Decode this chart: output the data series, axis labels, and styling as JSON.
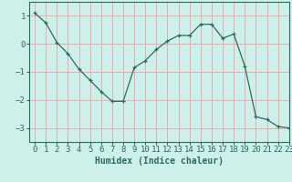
{
  "x": [
    0,
    1,
    2,
    3,
    4,
    5,
    6,
    7,
    8,
    9,
    10,
    11,
    12,
    13,
    14,
    15,
    16,
    17,
    18,
    19,
    20,
    21,
    22,
    23
  ],
  "y": [
    1.1,
    0.75,
    0.05,
    -0.35,
    -0.9,
    -1.3,
    -1.7,
    -2.05,
    -2.05,
    -0.85,
    -0.6,
    -0.2,
    0.1,
    0.3,
    0.3,
    0.7,
    0.7,
    0.2,
    0.35,
    -0.8,
    -2.6,
    -2.7,
    -2.95,
    -3.0
  ],
  "xlabel": "Humidex (Indice chaleur)",
  "xlim": [
    -0.5,
    23
  ],
  "ylim": [
    -3.5,
    1.5
  ],
  "yticks": [
    -3,
    -2,
    -1,
    0,
    1
  ],
  "xticks": [
    0,
    1,
    2,
    3,
    4,
    5,
    6,
    7,
    8,
    9,
    10,
    11,
    12,
    13,
    14,
    15,
    16,
    17,
    18,
    19,
    20,
    21,
    22,
    23
  ],
  "line_color": "#2a6b5e",
  "marker": "+",
  "bg_color": "#cef0eb",
  "grid_color": "#f0a0a0",
  "label_fontsize": 7,
  "tick_fontsize": 6.5
}
